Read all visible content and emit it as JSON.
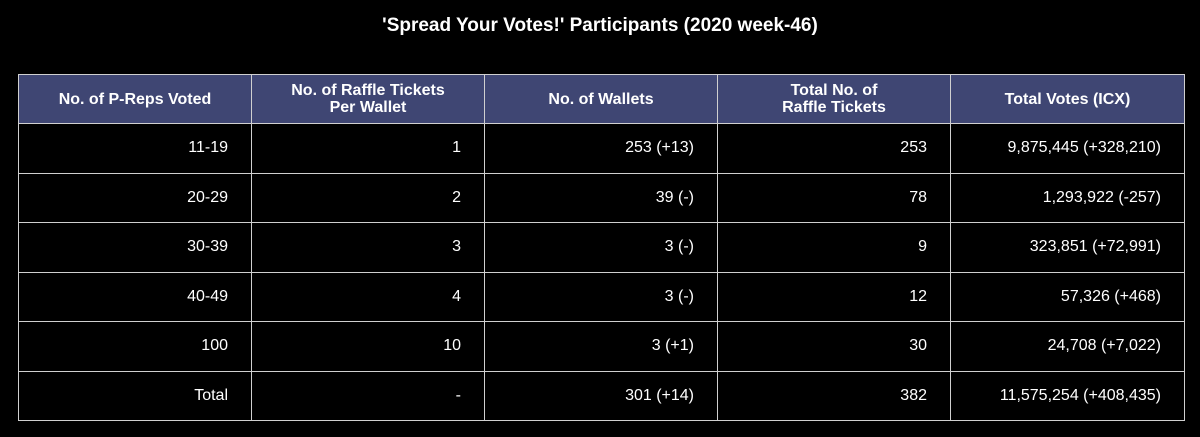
{
  "chart_data": {
    "type": "table",
    "title": "'Spread Your Votes!' Participants (2020 week-46)",
    "columns": [
      "No. of P-Reps Voted",
      "No. of Raffle Tickets\nPer Wallet",
      "No. of Wallets",
      "Total No. of\nRaffle Tickets",
      "Total Votes (ICX)"
    ],
    "rows": [
      [
        "11-19",
        "1",
        "253 (+13)",
        "253",
        "9,875,445 (+328,210)"
      ],
      [
        "20-29",
        "2",
        "39 (-)",
        "78",
        "1,293,922 (-257)"
      ],
      [
        "30-39",
        "3",
        "3 (-)",
        "9",
        "323,851 (+72,991)"
      ],
      [
        "40-49",
        "4",
        "3 (-)",
        "12",
        "57,326 (+468)"
      ],
      [
        "100",
        "10",
        "3 (+1)",
        "30",
        "24,708 (+7,022)"
      ],
      [
        "Total",
        "-",
        "301 (+14)",
        "382",
        "11,575,254 (+408,435)"
      ]
    ],
    "header_color": "#3f4673",
    "background_color": "#000000",
    "border_color": "#d0d0d0"
  }
}
